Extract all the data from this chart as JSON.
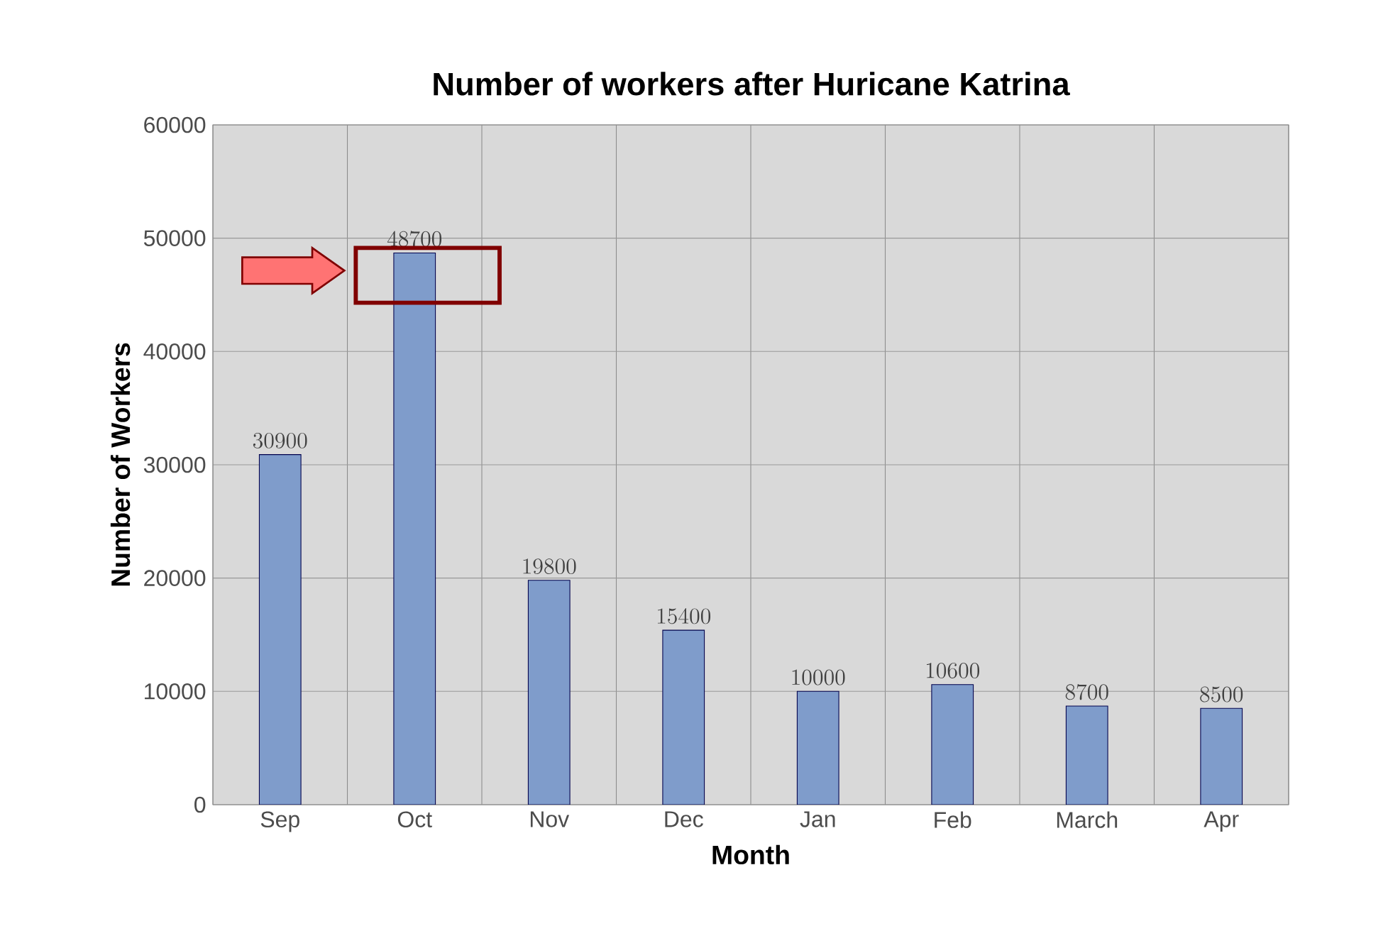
{
  "chart_data": {
    "type": "bar",
    "title": "Number of workers after Huricane Katrina",
    "xlabel": "Month",
    "ylabel": "Number of Workers",
    "categories": [
      "Sep",
      "Oct",
      "Nov",
      "Dec",
      "Jan",
      "Feb",
      "March",
      "Apr"
    ],
    "values": [
      30900,
      48700,
      19800,
      15400,
      10000,
      10600,
      8700,
      8500
    ],
    "color": "#7f9ccb",
    "ylim": [
      0,
      60000
    ],
    "yticks": [
      0,
      10000,
      20000,
      30000,
      40000,
      50000,
      60000
    ],
    "grid": true,
    "data_labels": true
  }
}
